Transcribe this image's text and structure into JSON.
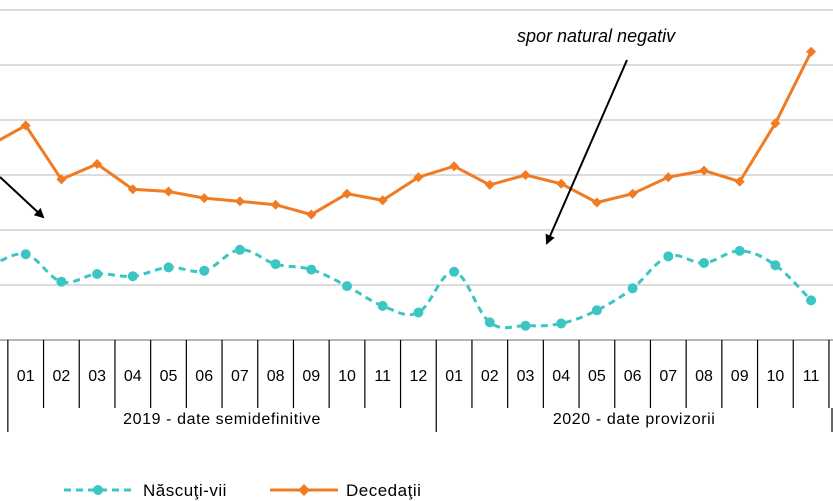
{
  "chart_data": {
    "type": "line",
    "categories": [
      "12",
      "01",
      "02",
      "03",
      "04",
      "05",
      "06",
      "07",
      "08",
      "09",
      "10",
      "11",
      "12",
      "01",
      "02",
      "03",
      "04",
      "05",
      "06",
      "07",
      "08",
      "09",
      "10",
      "11"
    ],
    "visible_tick_labels": [
      "01",
      "02",
      "03",
      "04",
      "05",
      "06",
      "07",
      "08",
      "09",
      "10",
      "11",
      "12",
      "01",
      "02",
      "03",
      "04",
      "05",
      "06",
      "07",
      "08",
      "09",
      "10",
      "11"
    ],
    "groups": [
      {
        "label": "2019 - date semidefinitive"
      },
      {
        "label": "2020 - date provizorii"
      }
    ],
    "series": [
      {
        "name": "Născuţi-vii",
        "color": "#3cc6c3",
        "style": "dashed",
        "marker": "circle",
        "values": [
          16.7,
          17.8,
          15.3,
          16.0,
          15.8,
          16.6,
          16.3,
          18.2,
          16.9,
          16.4,
          14.9,
          13.1,
          12.5,
          16.2,
          11.6,
          11.3,
          11.5,
          12.7,
          14.7,
          17.6,
          17.0,
          18.1,
          16.8,
          13.6
        ]
      },
      {
        "name": "Decedaţii",
        "color": "#f07b22",
        "style": "solid",
        "marker": "diamond",
        "values": [
          27.7,
          29.5,
          24.6,
          26.0,
          23.7,
          23.5,
          22.9,
          22.6,
          22.3,
          21.4,
          23.3,
          22.7,
          24.8,
          25.8,
          24.1,
          25.0,
          24.2,
          22.5,
          23.3,
          24.8,
          25.4,
          24.4,
          29.7,
          36.2
        ]
      }
    ],
    "annotation": "spor natural negativ",
    "grid": true,
    "legend_position": "bottom"
  }
}
